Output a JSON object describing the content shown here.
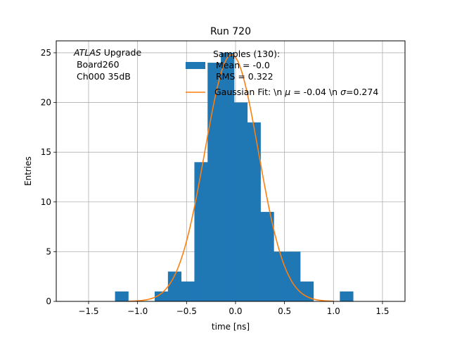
{
  "chart_data": {
    "type": "bar",
    "title": "Run 720",
    "xlabel": "time [ns]",
    "ylabel": "Entries",
    "xlim": [
      -1.83,
      1.73
    ],
    "ylim": [
      0,
      26.2
    ],
    "xticks": [
      -1.5,
      -1.0,
      -0.5,
      0.0,
      0.5,
      1.0,
      1.5
    ],
    "xtick_labels": [
      "−1.5",
      "−1.0",
      "−0.5",
      "0.0",
      "0.5",
      "1.0",
      "1.5"
    ],
    "yticks": [
      0,
      5,
      10,
      15,
      20,
      25
    ],
    "ytick_labels": [
      "0",
      "5",
      "10",
      "15",
      "20",
      "25"
    ],
    "grid": true,
    "bar_color": "#1f77b4",
    "fit_color": "#ff7f0e",
    "series": [
      {
        "name": "Samples (130):\n Mean = -0.0\n RMS = 0.322",
        "bin_edges": [
          -1.23,
          -1.095,
          -0.96,
          -0.825,
          -0.69,
          -0.555,
          -0.42,
          -0.285,
          -0.15,
          -0.015,
          0.12,
          0.255,
          0.39,
          0.525,
          0.66,
          0.795,
          0.93,
          1.065,
          1.2
        ],
        "counts": [
          1,
          0,
          0,
          1,
          3,
          2,
          14,
          24,
          25,
          20,
          18,
          9,
          5,
          5,
          2,
          0,
          0,
          1
        ]
      },
      {
        "name": "Gaussian Fit: \\n $\\mu$ = -0.04 \\n $\\sigma$=0.274",
        "fit": {
          "mu": -0.04,
          "sigma": 0.274,
          "amplitude": 24.8,
          "x_range": [
            -1.1,
            1.0
          ]
        }
      }
    ],
    "legend": {
      "placement": "top-right",
      "hist_label": [
        "Samples (130):",
        " Mean = -0.0",
        " RMS = 0.322"
      ],
      "fit_label_parts": [
        "Gaussian Fit: \\n ",
        "μ",
        " = -0.04 \\n ",
        "σ",
        "=0.274"
      ]
    },
    "annotation": {
      "atlas": "ATLAS",
      "upgrade": " Upgrade",
      "line2": " Board260",
      "line3": " Ch000 35dB"
    }
  }
}
